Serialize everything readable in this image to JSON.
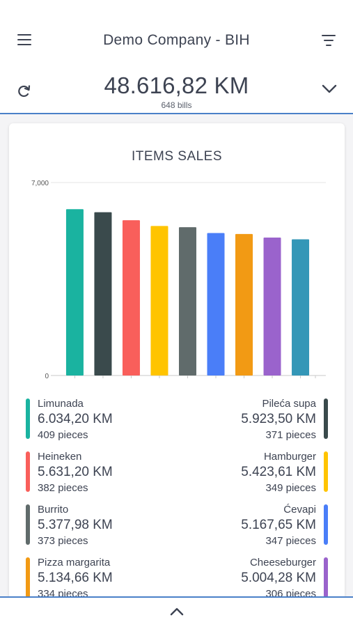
{
  "header": {
    "title": "Demo Company - BIH",
    "menu_icon": "hamburger-menu-icon",
    "filter_icon": "filter-icon"
  },
  "summary": {
    "total": "48.616,82 KM",
    "bills": "648 bills",
    "refresh_icon": "refresh-icon",
    "expand_icon": "chevron-down-icon"
  },
  "card": {
    "title": "ITEMS SALES"
  },
  "chart_data": {
    "type": "bar",
    "title": "ITEMS SALES",
    "categories": [
      "Limunada",
      "Pileća supa",
      "Heineken",
      "Hamburger",
      "Burrito",
      "Ćevapi",
      "Pizza margarita",
      "Cheeseburger",
      ""
    ],
    "values": [
      6034.2,
      5923.5,
      5631.2,
      5423.61,
      5377.98,
      5167.65,
      5134.66,
      5004.28,
      4940
    ],
    "colors": [
      "#1ab3a0",
      "#3a4a4c",
      "#f95f5b",
      "#ffc400",
      "#606b6b",
      "#4a7ef8",
      "#f29a14",
      "#9a63cc",
      "#3497b7"
    ],
    "ylim": [
      0,
      7000
    ],
    "y_ticks": [
      "0",
      "7,000"
    ],
    "grid": true,
    "xlabel": "",
    "ylabel": ""
  },
  "legend": [
    {
      "name": "Limunada",
      "amount": "6.034,20 KM",
      "qty": "409 pieces",
      "color": "#1ab3a0"
    },
    {
      "name": "Pileća supa",
      "amount": "5.923,50 KM",
      "qty": "371 pieces",
      "color": "#3a4a4c"
    },
    {
      "name": "Heineken",
      "amount": "5.631,20 KM",
      "qty": "382 pieces",
      "color": "#f95f5b"
    },
    {
      "name": "Hamburger",
      "amount": "5.423,61 KM",
      "qty": "349 pieces",
      "color": "#ffc400"
    },
    {
      "name": "Burrito",
      "amount": "5.377,98 KM",
      "qty": "373 pieces",
      "color": "#606b6b"
    },
    {
      "name": "Ćevapi",
      "amount": "5.167,65 KM",
      "qty": "347 pieces",
      "color": "#4a7ef8"
    },
    {
      "name": "Pizza margarita",
      "amount": "5.134,66 KM",
      "qty": "334 pieces",
      "color": "#f29a14"
    },
    {
      "name": "Cheeseburger",
      "amount": "5.004,28 KM",
      "qty": "306 pieces",
      "color": "#9a63cc"
    }
  ],
  "footer": {
    "collapse_icon": "chevron-up-icon"
  }
}
